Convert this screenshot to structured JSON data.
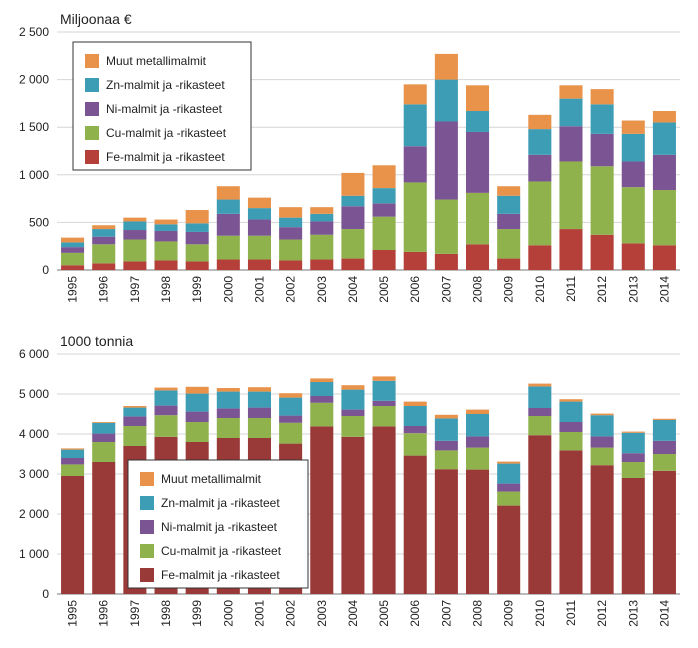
{
  "chart_data": [
    {
      "type": "bar",
      "stacked": true,
      "unit_label": "Miljoonaa €",
      "categories": [
        "1995",
        "1996",
        "1997",
        "1998",
        "1999",
        "2000",
        "2001",
        "2002",
        "2003",
        "2004",
        "2005",
        "2006",
        "2007",
        "2008",
        "2009",
        "2010",
        "2011",
        "2012",
        "2013",
        "2014"
      ],
      "ylim": [
        0,
        2500
      ],
      "yticks": [
        0,
        500,
        1000,
        1500,
        2000,
        2500
      ],
      "ytick_labels": [
        "0",
        "500",
        "1 000",
        "1 500",
        "2 000",
        "2 500"
      ],
      "grid": true,
      "legend_position": "top-left",
      "series": [
        {
          "name": "Fe-malmit ja -rikasteet",
          "color": "#b5403a",
          "values": [
            50,
            70,
            90,
            100,
            90,
            110,
            110,
            100,
            110,
            120,
            210,
            190,
            170,
            270,
            120,
            260,
            430,
            370,
            280,
            260
          ]
        },
        {
          "name": "Cu-malmit ja -rikasteet",
          "color": "#8fb24c",
          "values": [
            130,
            200,
            230,
            200,
            180,
            250,
            250,
            220,
            260,
            310,
            350,
            730,
            570,
            540,
            310,
            670,
            710,
            720,
            590,
            580
          ]
        },
        {
          "name": "Ni-malmit ja -rikasteet",
          "color": "#7b5593",
          "values": [
            60,
            80,
            100,
            110,
            130,
            230,
            170,
            130,
            140,
            240,
            140,
            380,
            820,
            640,
            160,
            280,
            370,
            340,
            270,
            370
          ]
        },
        {
          "name": "Zn-malmit ja -rikasteet",
          "color": "#3d9db5",
          "values": [
            50,
            80,
            90,
            70,
            90,
            150,
            120,
            100,
            80,
            110,
            160,
            440,
            440,
            220,
            190,
            270,
            290,
            310,
            290,
            340
          ]
        },
        {
          "name": "Muut metallimalmit",
          "color": "#e8924a",
          "values": [
            50,
            40,
            40,
            50,
            140,
            140,
            110,
            110,
            70,
            240,
            240,
            210,
            270,
            270,
            100,
            150,
            140,
            160,
            140,
            120
          ]
        }
      ]
    },
    {
      "type": "bar",
      "stacked": true,
      "unit_label": "1000 tonnia",
      "categories": [
        "1995",
        "1996",
        "1997",
        "1998",
        "1999",
        "2000",
        "2001",
        "2002",
        "2003",
        "2004",
        "2005",
        "2006",
        "2007",
        "2008",
        "2009",
        "2010",
        "2011",
        "2012",
        "2013",
        "2014"
      ],
      "ylim": [
        0,
        6000
      ],
      "yticks": [
        0,
        1000,
        2000,
        3000,
        4000,
        5000,
        6000
      ],
      "ytick_labels": [
        "0",
        "1 000",
        "2 000",
        "3 000",
        "4 000",
        "5 000",
        "6 000"
      ],
      "grid": true,
      "legend_position": "bottom-center",
      "series": [
        {
          "name": "Fe-malmit ja -rikasteet",
          "color": "#9a3a38",
          "values": [
            2950,
            3300,
            3700,
            3930,
            3800,
            3900,
            3900,
            3760,
            4190,
            3930,
            4190,
            3460,
            3120,
            3110,
            2210,
            3970,
            3590,
            3220,
            2900,
            3080
          ]
        },
        {
          "name": "Cu-malmit ja -rikasteet",
          "color": "#8fb24c",
          "values": [
            290,
            500,
            500,
            540,
            500,
            500,
            500,
            520,
            590,
            520,
            510,
            560,
            470,
            550,
            350,
            480,
            460,
            440,
            400,
            420
          ]
        },
        {
          "name": "Ni-malmit ja -rikasteet",
          "color": "#7b5593",
          "values": [
            160,
            210,
            240,
            240,
            260,
            240,
            260,
            180,
            170,
            160,
            130,
            180,
            240,
            280,
            200,
            200,
            250,
            280,
            220,
            330
          ]
        },
        {
          "name": "Zn-malmit ja -rikasteet",
          "color": "#3d9db5",
          "values": [
            210,
            270,
            220,
            380,
            450,
            420,
            400,
            450,
            350,
            500,
            500,
            500,
            560,
            560,
            500,
            540,
            510,
            530,
            510,
            520
          ]
        },
        {
          "name": "Muut metallimalmit",
          "color": "#e8924a",
          "values": [
            30,
            20,
            40,
            70,
            170,
            90,
            110,
            110,
            90,
            110,
            110,
            110,
            90,
            110,
            50,
            70,
            60,
            40,
            30,
            30
          ]
        }
      ]
    }
  ]
}
